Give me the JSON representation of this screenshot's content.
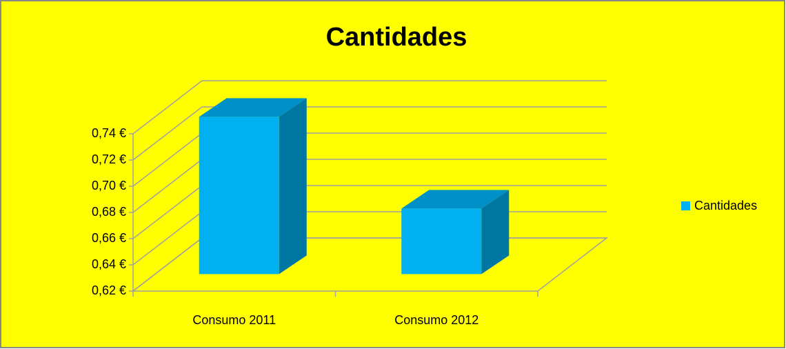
{
  "chart_data": {
    "type": "bar3d",
    "title": "Cantidades",
    "categories": [
      "Consumo 2011",
      "Consumo 2012"
    ],
    "series": [
      {
        "name": "Cantidades",
        "color": "#00b0f0",
        "values": [
          0.74,
          0.67
        ]
      }
    ],
    "ylim": [
      0.62,
      0.74
    ],
    "yticks": [
      {
        "value": 0.62,
        "label": "0,62 €"
      },
      {
        "value": 0.64,
        "label": "0,64 €"
      },
      {
        "value": 0.66,
        "label": "0,66 €"
      },
      {
        "value": 0.68,
        "label": "0,68 €"
      },
      {
        "value": 0.7,
        "label": "0,70 €"
      },
      {
        "value": 0.72,
        "label": "0,72 €"
      },
      {
        "value": 0.74,
        "label": "0,74 €"
      }
    ],
    "grid": true,
    "legend": "right"
  }
}
